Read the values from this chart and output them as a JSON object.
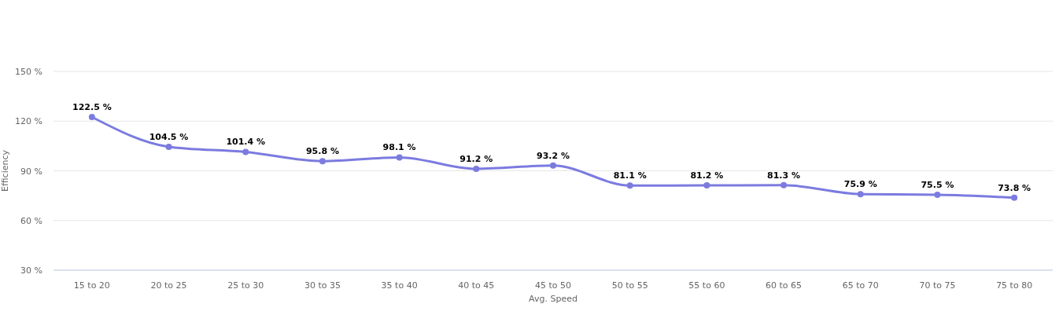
{
  "chart_data": {
    "type": "line",
    "xlabel": "Avg. Speed",
    "ylabel": "Efficiency",
    "categories": [
      "15 to 20",
      "20 to 25",
      "25 to 30",
      "30 to 35",
      "35 to 40",
      "40 to 45",
      "45 to 50",
      "50 to 55",
      "55 to 60",
      "60 to 65",
      "65 to 70",
      "70 to 75",
      "75 to 80"
    ],
    "series": [
      {
        "color": "#7b7be0",
        "values": [
          122.5,
          104.5,
          101.4,
          95.8,
          98.1,
          91.2,
          93.2,
          81.1,
          81.2,
          81.3,
          75.9,
          75.5,
          73.8
        ],
        "value_labels": [
          "122.5 %",
          "104.5 %",
          "101.4 %",
          "95.8 %",
          "98.1 %",
          "91.2 %",
          "93.2 %",
          "81.1 %",
          "81.2 %",
          "81.3 %",
          "75.9 %",
          "75.5 %",
          "73.8 %"
        ]
      }
    ],
    "ylim": [
      30,
      150
    ],
    "yticks": [
      {
        "value": 30,
        "label": "30 %"
      },
      {
        "value": 60,
        "label": "60 %"
      },
      {
        "value": 90,
        "label": "90 %"
      },
      {
        "value": 120,
        "label": "120 %"
      },
      {
        "value": 150,
        "label": "150 %"
      }
    ],
    "grid": "y",
    "marker": "circle",
    "line_style": "solid"
  }
}
